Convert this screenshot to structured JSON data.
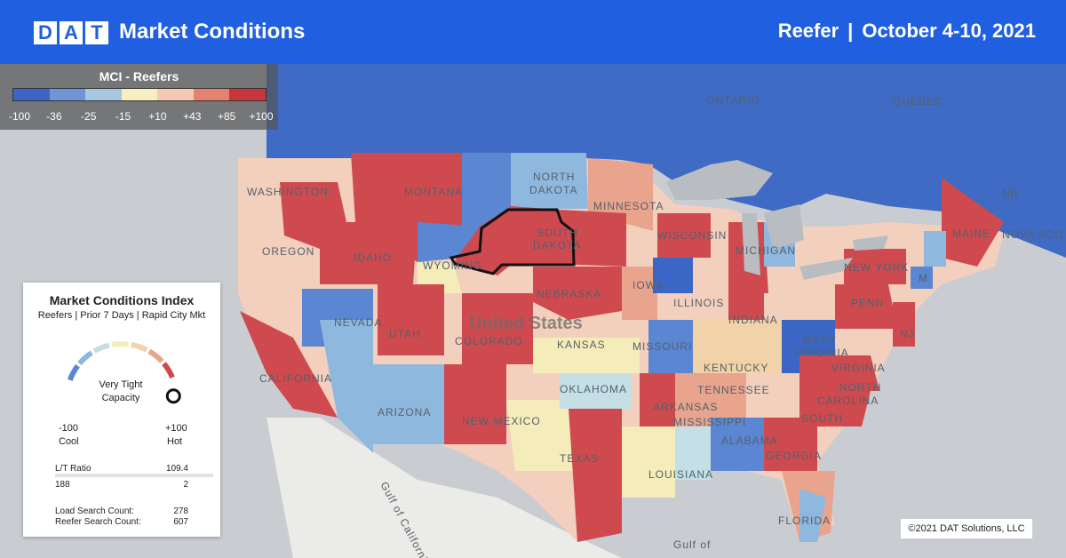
{
  "header": {
    "logo_letters": [
      "D",
      "A",
      "T"
    ],
    "title": "Market Conditions",
    "equipment": "Reefer",
    "separator": "|",
    "date_range": "October 4-10, 2021",
    "color": "#1f5fe0"
  },
  "legend": {
    "title": "MCI - Reefers",
    "ticks": [
      "-100",
      "-36",
      "-25",
      "-15",
      "+10",
      "+43",
      "+85",
      "+100"
    ],
    "colors": [
      "#3c66c5",
      "#6f95d6",
      "#a7c6e2",
      "#f5efc2",
      "#f3c8b4",
      "#e2826f",
      "#c7353d"
    ]
  },
  "map_labels": {
    "countries": {
      "usa": "United States"
    },
    "water": {
      "gulf_of_california": "Gulf of California",
      "gulf_of_mexico": "Gulf of"
    },
    "provinces": {
      "ontario": "ONTARIO",
      "quebec": "QUEBEC",
      "nb": "NB",
      "nova_scotia": "NOVA SCO"
    },
    "states": {
      "washington": "WASHINGTON",
      "montana": "MONTANA",
      "north_dakota_1": "NORTH",
      "north_dakota_2": "DAKOTA",
      "minnesota": "MINNESOTA",
      "south_dakota_1": "SOUTH",
      "south_dakota_2": "DAKOTA",
      "oregon": "OREGON",
      "idaho": "IDAHO",
      "wyoming": "WYOMING",
      "wisconsin": "WISCONSIN",
      "michigan": "MICHIGAN",
      "new_york": "NEW YORK",
      "maine": "MAINE",
      "nebraska": "NEBRASKA",
      "iowa": "IOWA",
      "nevada": "NEVADA",
      "utah": "UTAH",
      "colorado": "COLORADO",
      "kansas": "KANSAS",
      "illinois": "ILLINOIS",
      "indiana": "INDIANA",
      "missouri": "MISSOURI",
      "penn": "PENN",
      "nj": "NJ",
      "west_virginia_1": "WEST",
      "west_virginia_2": "VIRGINIA",
      "kentucky": "KENTUCKY",
      "virginia": "VIRGINIA",
      "california": "CALIFORNIA",
      "arizona": "ARIZONA",
      "new_mexico": "NEW MEXICO",
      "oklahoma": "OKLAHOMA",
      "tennessee": "TENNESSEE",
      "north_carolina_1": "NORTH",
      "north_carolina_2": "CAROLINA",
      "arkansas": "ARKANSAS",
      "mississippi": "MISSISSIPPI",
      "alabama": "ALABAMA",
      "south_carolina": "SOUTH",
      "texas": "TEXAS",
      "louisiana": "LOUISIANA",
      "georgia": "GEORGIA",
      "florida": "FLORIDA",
      "massachusetts_abbr": "M"
    }
  },
  "card": {
    "title": "Market Conditions Index",
    "subtitle": "Reefers | Prior 7 Days | Rapid City Mkt",
    "gauge": {
      "status_line1": "Very Tight",
      "status_line2": "Capacity",
      "min": "-100",
      "min_label": "Cool",
      "max": "+100",
      "max_label": "Hot",
      "value": 100,
      "colors": [
        "#5b86d1",
        "#8fb8df",
        "#c4dfe6",
        "#f4edb9",
        "#f2d2a8",
        "#e8a48c",
        "#cf4a4f"
      ]
    },
    "lt_ratio": {
      "label": "L/T Ratio",
      "value": "109.4",
      "left": "188",
      "right": "2"
    },
    "load_search": {
      "label": "Load Search Count:",
      "value": "278"
    },
    "reefer_search": {
      "label": "Reefer Search Count:",
      "value": "607"
    }
  },
  "copyright": "©2021 DAT Solutions, LLC"
}
